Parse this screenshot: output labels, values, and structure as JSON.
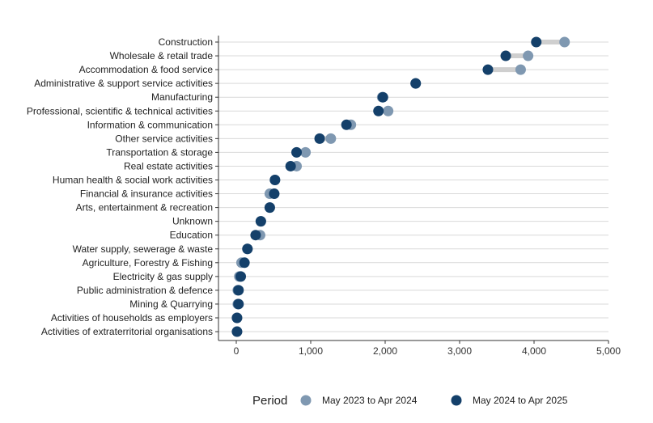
{
  "chart_data": {
    "type": "dumbbell",
    "categories": [
      "Construction",
      "Wholesale & retail trade",
      "Accommodation & food service",
      "Administrative & support service activities",
      "Manufacturing",
      "Professional, scientific & technical activities",
      "Information & communication",
      "Other service activities",
      "Transportation & storage",
      "Real estate activities",
      "Human health & social work activities",
      "Financial & insurance activities",
      "Arts, entertainment & recreation",
      "Unknown",
      "Education",
      "Water supply, sewerage & waste",
      "Agriculture, Forestry & Fishing",
      "Electricity & gas supply",
      "Public administration & defence",
      "Mining & Quarrying",
      "Activities of households as employers",
      "Activities of extraterritorial organisations"
    ],
    "series": [
      {
        "name": "May 2023 to Apr 2024",
        "color": "#7f98b1",
        "values": [
          4410,
          3920,
          3820,
          2410,
          1960,
          2040,
          1540,
          1270,
          930,
          810,
          520,
          450,
          450,
          330,
          320,
          150,
          70,
          40,
          20,
          20,
          10,
          10
        ]
      },
      {
        "name": "May 2024 to Apr 2025",
        "color": "#14406a",
        "values": [
          4030,
          3620,
          3380,
          2410,
          1970,
          1910,
          1480,
          1120,
          810,
          730,
          520,
          510,
          450,
          330,
          260,
          150,
          110,
          60,
          30,
          30,
          10,
          10
        ]
      }
    ],
    "connector_color": "#cfcfcf",
    "xlim": [
      0,
      5000
    ],
    "xticks": [
      0,
      1000,
      2000,
      3000,
      4000,
      5000
    ],
    "xtick_labels": [
      "0",
      "1,000",
      "2,000",
      "3,000",
      "4,000",
      "5,000"
    ],
    "grid": "horizontal",
    "legend_position": "bottom",
    "legend_title": "Period",
    "title": "",
    "xlabel": "",
    "ylabel": ""
  }
}
